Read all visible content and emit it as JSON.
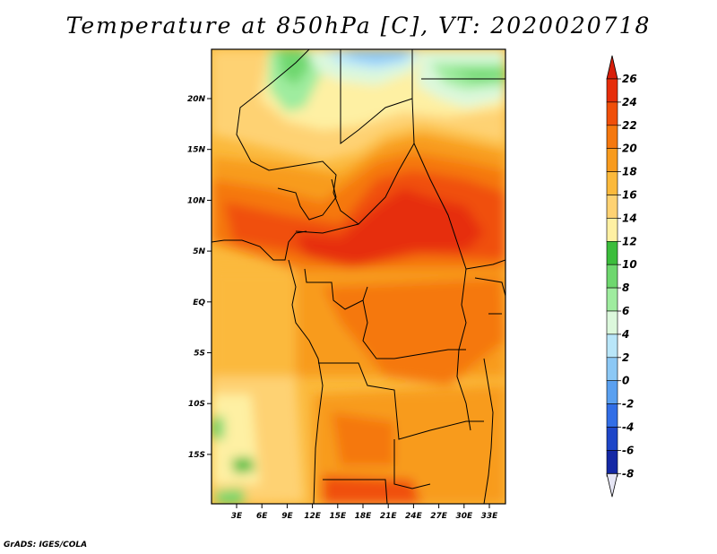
{
  "title": "Temperature at 850hPa [C], VT: 2020020718",
  "footer": "GrADS: IGES/COLA",
  "map": {
    "lat_ticks": [
      "20N",
      "15N",
      "10N",
      "5N",
      "EQ",
      "5S",
      "10S",
      "15S"
    ],
    "lon_ticks": [
      "3E",
      "6E",
      "9E",
      "12E",
      "15E",
      "18E",
      "21E",
      "24E",
      "27E",
      "30E",
      "33E"
    ]
  },
  "colorbar": {
    "levels": [
      "26",
      "24",
      "22",
      "20",
      "18",
      "16",
      "14",
      "12",
      "10",
      "8",
      "6",
      "4",
      "2",
      "0",
      "-2",
      "-4",
      "-6",
      "-8"
    ],
    "colors": [
      "#e62d0a",
      "#f04f0a",
      "#f5780f",
      "#f89b1e",
      "#fbb93c",
      "#fed273",
      "#fef0a3",
      "#3cbd3c",
      "#6ed76e",
      "#9fec9f",
      "#dcf8dc",
      "#b9e6f9",
      "#8cc8f5",
      "#5aa0f0",
      "#326ee6",
      "#1e46c8",
      "#1428a5",
      "#0a0a6e"
    ],
    "over_color": "#d71e0a",
    "under_color": "#e6e6f5"
  },
  "colors": {
    "border": "#000000"
  }
}
